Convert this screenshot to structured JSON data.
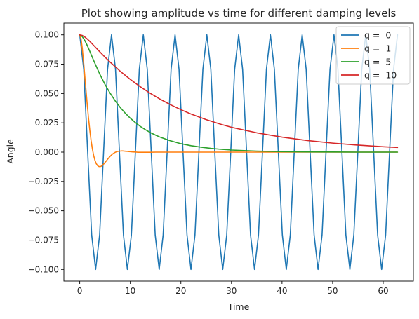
{
  "chart_data": {
    "type": "line",
    "title": "Plot showing amplitude vs time for different damping levels",
    "xlabel": "Time",
    "ylabel": "Angle",
    "xlim": [
      -3.14,
      65.97
    ],
    "ylim": [
      -0.11,
      0.11
    ],
    "xticks": [
      0,
      10,
      20,
      30,
      40,
      50,
      60
    ],
    "yticks": [
      -0.1,
      -0.075,
      -0.05,
      -0.025,
      0.0,
      0.025,
      0.05,
      0.075,
      0.1
    ],
    "ytick_labels": [
      "−0.100",
      "−0.075",
      "−0.050",
      "−0.025",
      "0.000",
      "0.025",
      "0.050",
      "0.075",
      "0.100"
    ],
    "grid": false,
    "legend_position": "top-right",
    "series": [
      {
        "name": "q =  0",
        "color": "#1f77b4",
        "x": [
          0.0,
          0.79,
          1.57,
          2.36,
          3.14,
          3.93,
          4.71,
          5.5,
          6.28,
          7.07,
          7.85,
          8.64,
          9.42,
          10.21,
          11.0,
          11.78,
          12.57,
          13.35,
          14.14,
          14.92,
          15.71,
          16.49,
          17.28,
          18.06,
          18.85,
          19.63,
          20.42,
          21.21,
          21.99,
          22.78,
          23.56,
          24.35,
          25.13,
          25.92,
          26.7,
          27.49,
          28.27,
          29.06,
          29.85,
          30.63,
          31.42,
          32.2,
          32.99,
          33.77,
          34.56,
          35.34,
          36.13,
          36.91,
          37.7,
          38.48,
          39.27,
          40.06,
          40.84,
          41.63,
          42.41,
          43.2,
          43.98,
          44.77,
          45.55,
          46.34,
          47.12,
          47.91,
          48.69,
          49.48,
          50.27,
          51.05,
          51.84,
          52.62,
          53.41,
          54.19,
          54.98,
          55.76,
          56.55,
          57.33,
          58.12,
          58.9,
          59.69,
          60.48,
          61.26,
          62.05,
          62.83
        ],
        "y": [
          0.1,
          0.0707,
          0.0,
          -0.0707,
          -0.1,
          -0.0707,
          0.0,
          0.0707,
          0.1,
          0.0707,
          0.0,
          -0.0707,
          -0.1,
          -0.0707,
          0.0,
          0.0707,
          0.1,
          0.0707,
          0.0,
          -0.0707,
          -0.1,
          -0.0707,
          0.0,
          0.0707,
          0.1,
          0.0707,
          0.0,
          -0.0707,
          -0.1,
          -0.0707,
          0.0,
          0.0707,
          0.1,
          0.0707,
          0.0,
          -0.0707,
          -0.1,
          -0.0707,
          0.0,
          0.0707,
          0.1,
          0.0707,
          0.0,
          -0.0707,
          -0.1,
          -0.0707,
          0.0,
          0.0707,
          0.1,
          0.0707,
          0.0,
          -0.0707,
          -0.1,
          -0.0707,
          0.0,
          0.0707,
          0.1,
          0.0707,
          0.0,
          -0.0707,
          -0.1,
          -0.0707,
          0.0,
          0.0707,
          0.1,
          0.0707,
          0.0,
          -0.0707,
          -0.1,
          -0.0707,
          0.0,
          0.0707,
          0.1,
          0.0707,
          0.0,
          -0.0707,
          -0.1,
          -0.0707,
          0.0,
          0.0707,
          0.1
        ]
      },
      {
        "name": "q =  1",
        "color": "#ff7f0e",
        "x": [
          0.0,
          0.25,
          0.5,
          0.75,
          1.0,
          1.25,
          1.5,
          1.75,
          2.0,
          2.25,
          2.5,
          2.75,
          3.0,
          3.25,
          3.5,
          3.75,
          4.0,
          4.25,
          4.5,
          4.75,
          5.0,
          5.25,
          5.5,
          5.75,
          6.0,
          6.25,
          6.5,
          6.75,
          7.0,
          7.25,
          7.5,
          7.75,
          8.0,
          8.25,
          8.5,
          8.75,
          9.0,
          9.25,
          9.5,
          9.75,
          10.0,
          10.5,
          11.0,
          11.5,
          12.0,
          12.5,
          13.0,
          14.0,
          15.0,
          16.0,
          18.0,
          20.0,
          25.0,
          30.0,
          40.0,
          50.0,
          62.83
        ],
        "y": [
          0.1,
          0.0968,
          0.0886,
          0.0775,
          0.0649,
          0.0521,
          0.0397,
          0.0283,
          0.0183,
          0.0097,
          0.0027,
          -0.0028,
          -0.0069,
          -0.0097,
          -0.0114,
          -0.0122,
          -0.0124,
          -0.012,
          -0.0112,
          -0.0101,
          -0.0088,
          -0.0075,
          -0.0061,
          -0.0048,
          -0.0036,
          -0.0025,
          -0.0016,
          -0.0008,
          -0.0002,
          0.0003,
          0.0006,
          0.0008,
          0.0009,
          0.001,
          0.001,
          0.0009,
          0.0008,
          0.0007,
          0.0006,
          0.0005,
          0.0004,
          0.0002,
          0.0001,
          -0.0001,
          -0.0001,
          -0.0001,
          -0.0001,
          -0.0001,
          0.0,
          0.0,
          0.0,
          0.0,
          0.0,
          0.0,
          0.0,
          0.0,
          0.0
        ]
      },
      {
        "name": "q =  5",
        "color": "#2ca02c",
        "x": [
          0.0,
          0.5,
          1.0,
          1.5,
          2.0,
          2.5,
          3.0,
          4.0,
          5.0,
          6.0,
          7.0,
          8.0,
          9.0,
          10.0,
          11.0,
          12.0,
          13.0,
          14.0,
          15.0,
          16.0,
          18.0,
          20.0,
          22.0,
          24.0,
          26.0,
          28.0,
          30.0,
          35.0,
          40.0,
          45.0,
          50.0,
          55.0,
          62.83
        ],
        "y": [
          0.1,
          0.0985,
          0.0952,
          0.0908,
          0.0858,
          0.0807,
          0.0757,
          0.0662,
          0.0577,
          0.0503,
          0.0438,
          0.0381,
          0.0332,
          0.0289,
          0.0252,
          0.0219,
          0.0191,
          0.0166,
          0.0145,
          0.0126,
          0.0096,
          0.0072,
          0.0055,
          0.0042,
          0.0032,
          0.0024,
          0.0018,
          0.0009,
          0.0004,
          0.0002,
          0.0001,
          0.0,
          0.0
        ]
      },
      {
        "name": "q =  10",
        "color": "#d62728",
        "x": [
          0.0,
          0.5,
          1.0,
          1.5,
          2.0,
          3.0,
          4.0,
          5.0,
          6.0,
          8.0,
          10.0,
          12.0,
          14.0,
          16.0,
          18.0,
          20.0,
          22.0,
          25.0,
          28.0,
          30.0,
          35.0,
          40.0,
          45.0,
          50.0,
          55.0,
          60.0,
          62.83
        ],
        "y": [
          0.1,
          0.0995,
          0.0982,
          0.0964,
          0.0944,
          0.0899,
          0.0854,
          0.081,
          0.0768,
          0.069,
          0.062,
          0.0557,
          0.05,
          0.0449,
          0.0403,
          0.0362,
          0.0325,
          0.0277,
          0.0236,
          0.0212,
          0.0165,
          0.0128,
          0.0099,
          0.0077,
          0.006,
          0.0046,
          0.004
        ]
      }
    ]
  }
}
